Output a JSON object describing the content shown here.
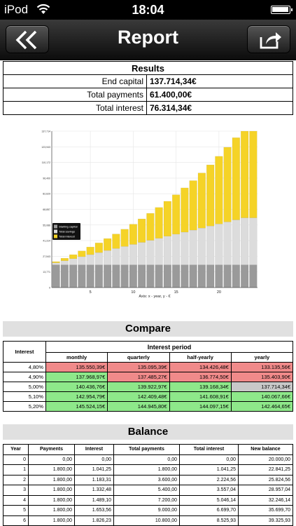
{
  "status": {
    "carrier": "iPod",
    "time": "18:04"
  },
  "nav": {
    "title": "Report",
    "back_icon": "double-chevron-left-icon",
    "share_icon": "share-icon"
  },
  "results": {
    "title": "Results",
    "rows": [
      {
        "label": "End capital",
        "value": "137.714,34€"
      },
      {
        "label": "Total payments",
        "value": "61.400,00€"
      },
      {
        "label": "Total interest",
        "value": "76.314,34€"
      }
    ]
  },
  "chart_data": {
    "type": "bar",
    "stacked": true,
    "categories": [
      1,
      2,
      3,
      4,
      5,
      6,
      7,
      8,
      9,
      10,
      11,
      12,
      13,
      14,
      15,
      16,
      17,
      18,
      19,
      20,
      21,
      22,
      23,
      24
    ],
    "xlabel": "Axis: x - year, y - €",
    "x_ticks": [
      "5",
      "10",
      "15",
      "20"
    ],
    "y_ticks": [
      "0",
      "13,771",
      "27,543",
      "41,314",
      "55,086",
      "68,857",
      "82,629",
      "96,400",
      "110,172",
      "123,943",
      "137,714"
    ],
    "ylim": [
      0,
      137714
    ],
    "legend": [
      "Starting capital",
      "Total savings",
      "Total interest"
    ],
    "legend_position": "left-middle",
    "colors": {
      "Starting capital": "#9a9a9a",
      "Total savings": "#dcdcdc",
      "Total interest": "#f5d327"
    },
    "series": [
      {
        "name": "Starting capital",
        "values": [
          20000,
          20000,
          20000,
          20000,
          20000,
          20000,
          20000,
          20000,
          20000,
          20000,
          20000,
          20000,
          20000,
          20000,
          20000,
          20000,
          20000,
          20000,
          20000,
          20000,
          20000,
          20000,
          20000,
          20000
        ]
      },
      {
        "name": "Total savings",
        "values": [
          1800,
          3600,
          5400,
          7200,
          9000,
          10800,
          12600,
          14400,
          16200,
          18000,
          19800,
          21600,
          23400,
          25200,
          27000,
          28800,
          30600,
          32400,
          34200,
          36000,
          37800,
          39600,
          41400,
          41400
        ]
      },
      {
        "name": "Total interest",
        "values": [
          1041,
          2225,
          3557,
          5046,
          6700,
          8526,
          10536,
          12740,
          15150,
          17780,
          20640,
          23745,
          27110,
          30755,
          34695,
          38950,
          43540,
          48490,
          53820,
          59560,
          65730,
          72360,
          76314,
          76314
        ]
      }
    ]
  },
  "compare": {
    "title": "Compare",
    "interest_header": "Interest",
    "period_header": "Interest period",
    "periods": [
      "monthly",
      "quarterly",
      "half-yearly",
      "yearly"
    ],
    "rows": [
      {
        "rate": "4,80%",
        "values": [
          "135.550,39€",
          "135.095,39€",
          "134.426,48€",
          "133.135,56€"
        ],
        "colors": [
          "red",
          "red",
          "red",
          "red"
        ]
      },
      {
        "rate": "4,90%",
        "values": [
          "137.968,97€",
          "137.485,27€",
          "136.774,50€",
          "135.403,90€"
        ],
        "colors": [
          "green",
          "red",
          "red",
          "red"
        ]
      },
      {
        "rate": "5,00%",
        "values": [
          "140.436,76€",
          "139.922,97€",
          "139.168,34€",
          "137.714,34€"
        ],
        "colors": [
          "green",
          "green",
          "green",
          "grey"
        ]
      },
      {
        "rate": "5,10%",
        "values": [
          "142.954,79€",
          "142.409,48€",
          "141.608,91€",
          "140.067,66€"
        ],
        "colors": [
          "green",
          "green",
          "green",
          "green"
        ]
      },
      {
        "rate": "5,20%",
        "values": [
          "145.524,15€",
          "144.945,80€",
          "144.097,15€",
          "142.464,65€"
        ],
        "colors": [
          "green",
          "green",
          "green",
          "green"
        ]
      }
    ]
  },
  "balance": {
    "title": "Balance",
    "columns": [
      "Year",
      "Payments",
      "Interest",
      "Total payments",
      "Total interest",
      "New balance"
    ],
    "rows": [
      [
        "0",
        "0,00",
        "0,00",
        "0,00",
        "0,00",
        "20.000,00"
      ],
      [
        "1",
        "1.800,00",
        "1.041,25",
        "1.800,00",
        "1.041,25",
        "22.841,25"
      ],
      [
        "2",
        "1.800,00",
        "1.183,31",
        "3.600,00",
        "2.224,56",
        "25.824,56"
      ],
      [
        "3",
        "1.800,00",
        "1.332,48",
        "5.400,00",
        "3.557,04",
        "28.957,04"
      ],
      [
        "4",
        "1.800,00",
        "1.489,10",
        "7.200,00",
        "5.046,14",
        "32.246,14"
      ],
      [
        "5",
        "1.800,00",
        "1.653,56",
        "9.000,00",
        "6.699,70",
        "35.699,70"
      ],
      [
        "6",
        "1.800,00",
        "1.826,23",
        "10.800,00",
        "8.525,93",
        "39.325,93"
      ]
    ]
  }
}
